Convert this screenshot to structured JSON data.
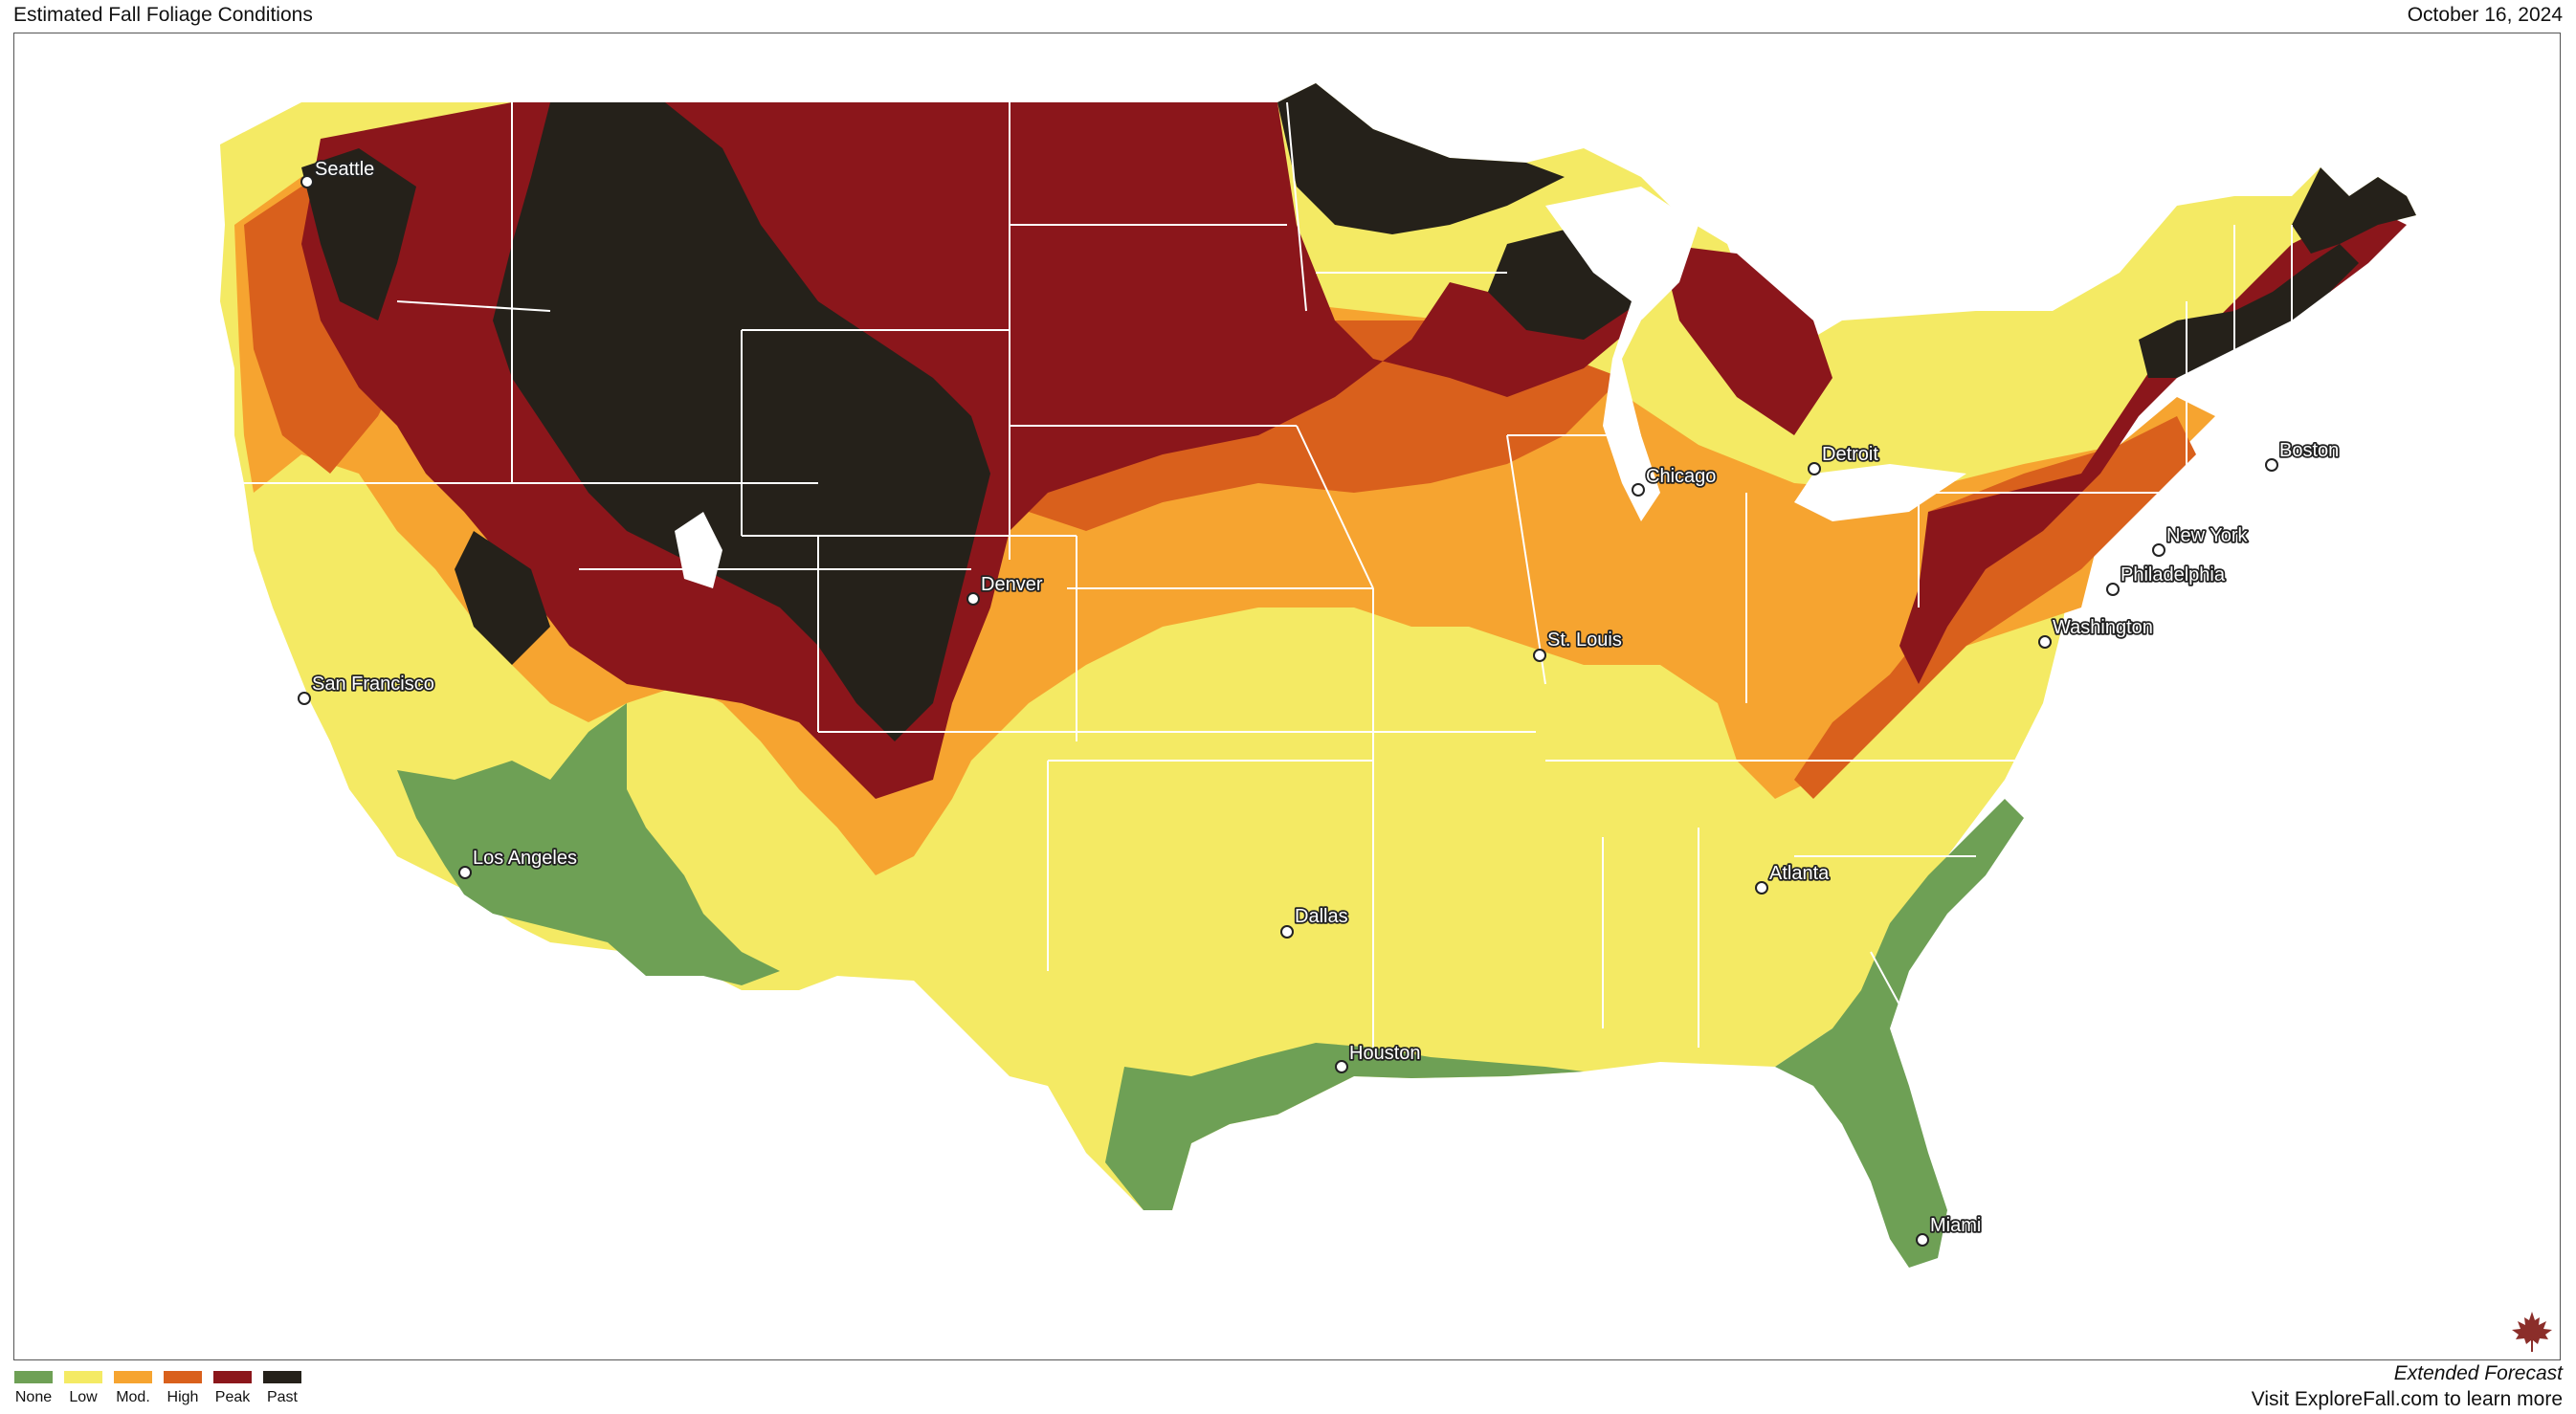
{
  "header": {
    "title": "Estimated Fall Foliage Conditions",
    "date": "October 16, 2024"
  },
  "legend": [
    {
      "label": "None",
      "color": "#6ea055"
    },
    {
      "label": "Low",
      "color": "#f4ea64"
    },
    {
      "label": "Mod.",
      "color": "#f6a430"
    },
    {
      "label": "High",
      "color": "#d9601c"
    },
    {
      "label": "Peak",
      "color": "#8b161b"
    },
    {
      "label": "Past",
      "color": "#25211a"
    }
  ],
  "cities": [
    {
      "name": "Seattle"
    },
    {
      "name": "San Francisco"
    },
    {
      "name": "Los Angeles"
    },
    {
      "name": "Denver"
    },
    {
      "name": "Dallas"
    },
    {
      "name": "Houston"
    },
    {
      "name": "St. Louis"
    },
    {
      "name": "Chicago"
    },
    {
      "name": "Detroit"
    },
    {
      "name": "Atlanta"
    },
    {
      "name": "Miami"
    },
    {
      "name": "Washington"
    },
    {
      "name": "Philadelphia"
    },
    {
      "name": "New York"
    },
    {
      "name": "Boston"
    }
  ],
  "footer": {
    "title": "Extended Forecast",
    "link_text": "Visit ExploreFall.com to learn more"
  },
  "icons": {
    "logo": "maple-leaf-icon"
  }
}
